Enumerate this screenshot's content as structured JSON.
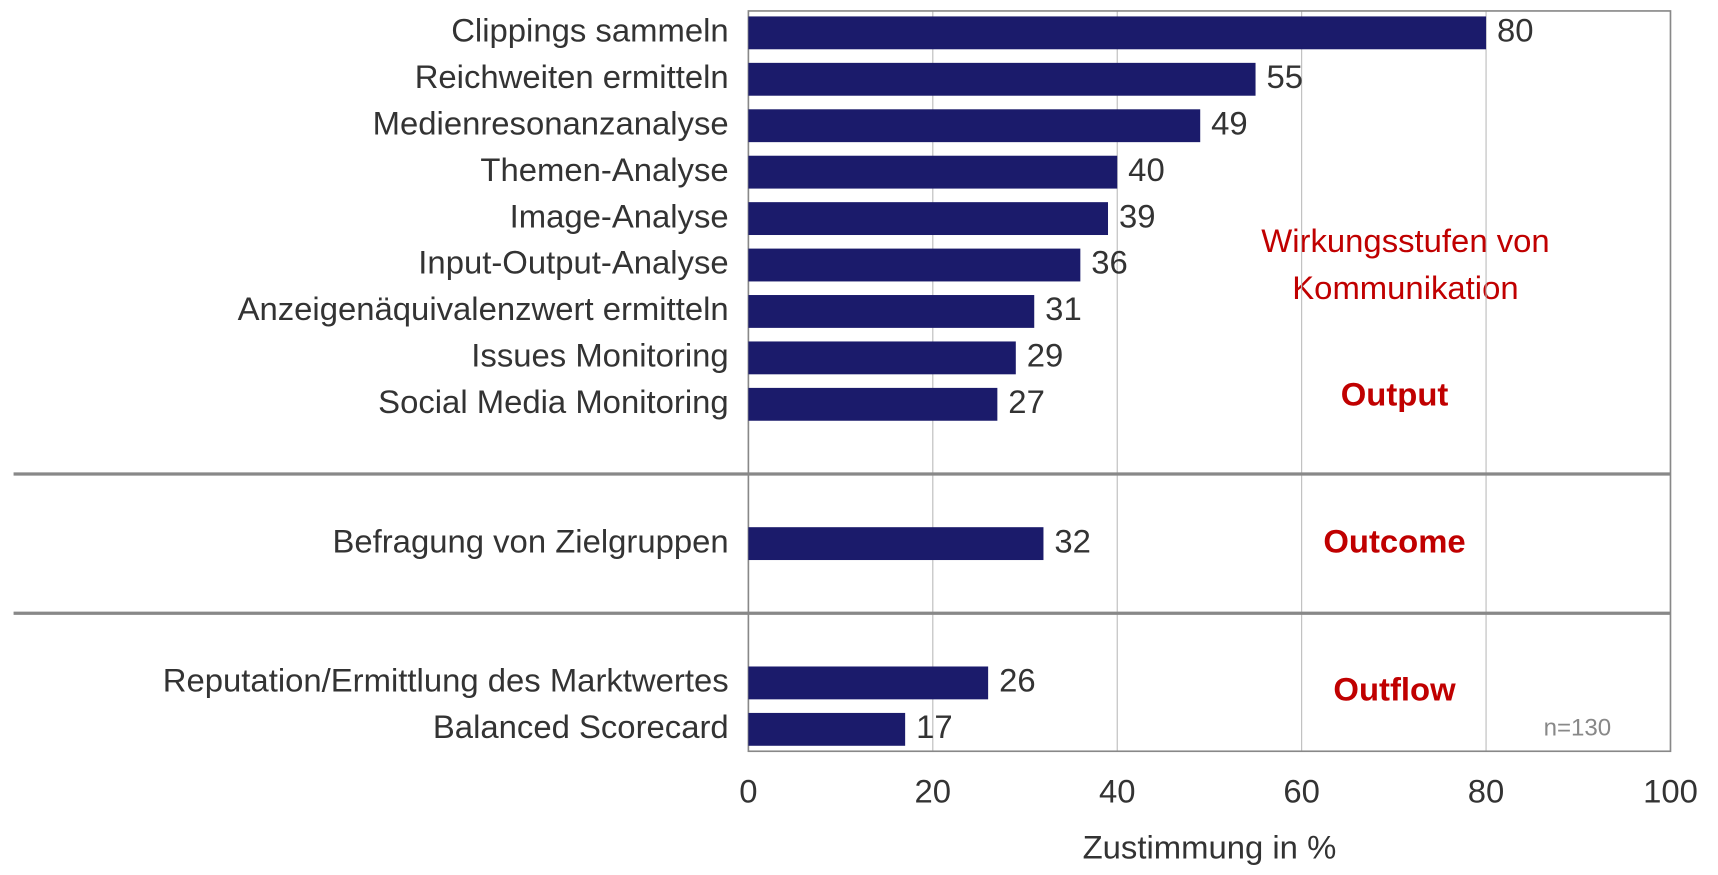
{
  "chart_data": {
    "type": "bar",
    "orientation": "horizontal",
    "color": "#1b1b6b",
    "groups": [
      {
        "name": "Output",
        "categories": [
          "Clippings sammeln",
          "Reichweiten ermitteln",
          "Medienresonanzanalyse",
          "Themen-Analyse",
          "Image-Analyse",
          "Input-Output-Analyse",
          "Anzeigenäquivalenzwert ermitteln",
          "Issues Monitoring",
          "Social Media Monitoring"
        ],
        "values": [
          80,
          55,
          49,
          40,
          39,
          36,
          31,
          29,
          27
        ]
      },
      {
        "name": "Outcome",
        "categories": [
          "Befragung von Zielgruppen"
        ],
        "values": [
          32
        ]
      },
      {
        "name": "Outflow",
        "categories": [
          "Reputation/Ermittlung des Marktwertes",
          "Balanced Scorecard"
        ],
        "values": [
          26,
          17
        ]
      }
    ],
    "annotation": [
      "Wirkungsstufen von",
      "Kommunikation"
    ],
    "note": "n=130",
    "xlabel": "Zustimmung in %",
    "xlim": [
      0,
      100
    ],
    "xticks": [
      0,
      20,
      40,
      60,
      80,
      100
    ],
    "grid": true
  }
}
